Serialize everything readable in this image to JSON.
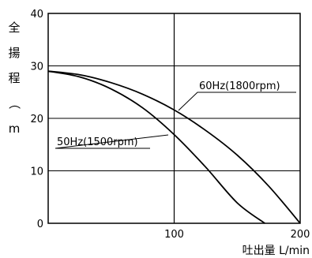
{
  "chart_data": {
    "type": "line",
    "title": "",
    "xlabel": "吐出量 L/min",
    "ylabel": "全揚程（m）",
    "xlim": [
      0,
      200
    ],
    "ylim": [
      0,
      40
    ],
    "x_ticks": [
      "100",
      "200"
    ],
    "y_ticks": [
      "0",
      "10",
      "20",
      "30",
      "40"
    ],
    "grid": true,
    "series": [
      {
        "name": "60Hz(1800rpm)",
        "x": [
          0,
          25,
          50,
          75,
          100,
          125,
          150,
          175,
          200
        ],
        "y": [
          29.0,
          28.3,
          26.8,
          24.6,
          21.6,
          17.7,
          13.0,
          7.1,
          0.0
        ]
      },
      {
        "name": "50Hz(1500rpm)",
        "x": [
          0,
          25,
          50,
          75,
          100,
          125,
          150,
          172
        ],
        "y": [
          29.0,
          27.9,
          25.6,
          22.0,
          16.9,
          10.7,
          3.9,
          0.0
        ]
      }
    ],
    "annotations": [
      {
        "text": "60Hz(1800rpm)",
        "series": "60Hz(1800rpm)"
      },
      {
        "text": "50Hz(1500rpm)",
        "series": "50Hz(1500rpm)"
      }
    ]
  }
}
